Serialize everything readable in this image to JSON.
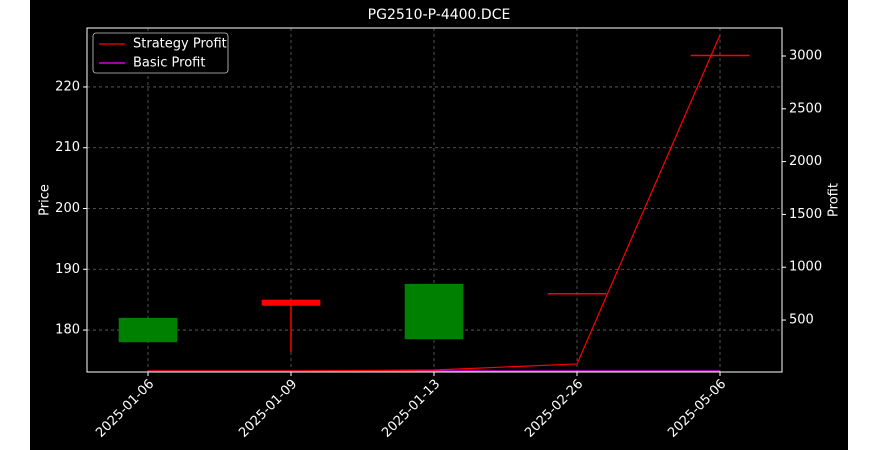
{
  "chart_data": {
    "type": "candlestick",
    "title": "PG2510-P-4400.DCE",
    "ylabel": "Price",
    "y2label": "Profit",
    "categories": [
      "2025-01-06",
      "2025-01-09",
      "2025-01-13",
      "2025-02-26",
      "2025-05-06"
    ],
    "open": [
      178.0,
      185.0,
      178.5,
      186.1,
      225.3
    ],
    "high": [
      182.0,
      185.0,
      187.6,
      186.1,
      225.3
    ],
    "low": [
      178.0,
      176.4,
      178.5,
      186.1,
      225.3
    ],
    "close": [
      182.0,
      184.0,
      187.6,
      186.1,
      225.3
    ],
    "up_color": "#008000",
    "down_color": "#ff0000",
    "series": [
      {
        "name": "Strategy Profit",
        "color": "#ff0000",
        "values": [
          18,
          18,
          27,
          84,
          3199
        ],
        "axis": "y2"
      },
      {
        "name": "Basic Profit",
        "color": "#ff00ff",
        "values": [
          18,
          18,
          18,
          18,
          18
        ],
        "axis": "y2"
      }
    ],
    "ylim": [
      173.1,
      229.7
    ],
    "yticks": [
      180,
      190,
      200,
      210,
      220
    ],
    "y2lim": [
      8,
      3265
    ],
    "y2ticks": [
      500,
      1000,
      1500,
      2000,
      2500,
      3000
    ],
    "grid": true,
    "legend": "upper left"
  }
}
